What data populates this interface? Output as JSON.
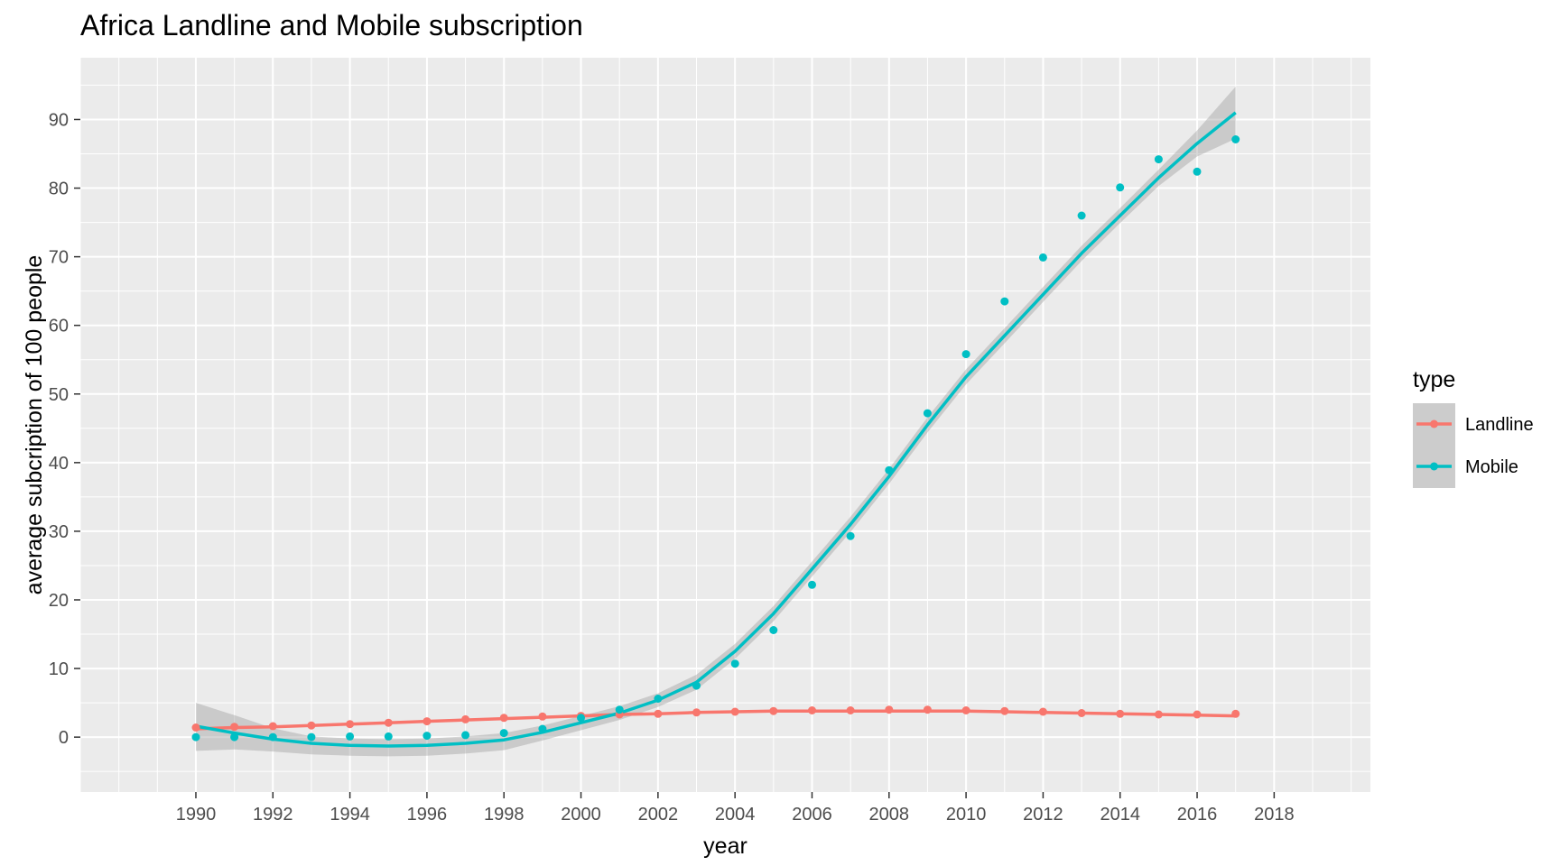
{
  "chart_data": {
    "type": "line",
    "title": "Africa Landline and Mobile subscription",
    "xlabel": "year",
    "ylabel": "average subcription of 100 people",
    "xlim": [
      1987.0,
      2020.5
    ],
    "ylim": [
      -8.0,
      99.0
    ],
    "x_ticks": [
      "1990",
      "1992",
      "1994",
      "1996",
      "1998",
      "2000",
      "2002",
      "2004",
      "2006",
      "2008",
      "2010",
      "2012",
      "2014",
      "2016",
      "2018"
    ],
    "y_ticks": [
      "0",
      "10",
      "20",
      "30",
      "40",
      "50",
      "60",
      "70",
      "80",
      "90"
    ],
    "grid": true,
    "background": "#ebebeb",
    "legend": {
      "title": "type",
      "position": "right",
      "entries": [
        "Landline",
        "Mobile"
      ]
    },
    "x": [
      1990,
      1991,
      1992,
      1993,
      1994,
      1995,
      1996,
      1997,
      1998,
      1999,
      2000,
      2001,
      2002,
      2003,
      2004,
      2005,
      2006,
      2007,
      2008,
      2009,
      2010,
      2011,
      2012,
      2013,
      2014,
      2015,
      2016,
      2017
    ],
    "series": [
      {
        "name": "Landline",
        "color": "#f8766d",
        "points": [
          1.4,
          1.5,
          1.6,
          1.7,
          1.9,
          2.1,
          2.3,
          2.6,
          2.8,
          3.0,
          3.1,
          3.3,
          3.4,
          3.6,
          3.7,
          3.8,
          3.9,
          3.9,
          4.0,
          4.0,
          3.9,
          3.8,
          3.7,
          3.5,
          3.4,
          3.3,
          3.3,
          3.4
        ],
        "smooth": [
          1.2,
          1.4,
          1.5,
          1.7,
          1.9,
          2.1,
          2.3,
          2.5,
          2.7,
          2.9,
          3.1,
          3.3,
          3.4,
          3.6,
          3.7,
          3.8,
          3.8,
          3.8,
          3.8,
          3.8,
          3.8,
          3.7,
          3.6,
          3.5,
          3.4,
          3.3,
          3.2,
          3.1
        ]
      },
      {
        "name": "Mobile",
        "color": "#00bfc4",
        "points": [
          0.0,
          0.0,
          0.0,
          0.0,
          0.1,
          0.1,
          0.2,
          0.3,
          0.6,
          1.2,
          2.8,
          4.0,
          5.6,
          7.5,
          10.7,
          15.6,
          22.2,
          29.3,
          38.9,
          47.2,
          55.8,
          63.5,
          69.9,
          76.0,
          80.1,
          84.2,
          82.4,
          87.1
        ],
        "smooth": [
          1.6,
          0.6,
          -0.3,
          -0.9,
          -1.2,
          -1.3,
          -1.2,
          -0.9,
          -0.4,
          0.7,
          2.1,
          3.5,
          5.4,
          8.0,
          12.5,
          18.0,
          24.5,
          31.0,
          38.0,
          45.5,
          52.5,
          58.5,
          64.5,
          70.5,
          76.0,
          81.5,
          86.5,
          91.0
        ],
        "ci_upper": [
          5.0,
          3.2,
          1.3,
          0.1,
          -0.2,
          -0.3,
          -0.2,
          0.1,
          0.6,
          1.7,
          3.1,
          4.5,
          6.4,
          9.1,
          13.6,
          19.1,
          25.6,
          32.1,
          39.1,
          46.6,
          53.6,
          59.6,
          65.6,
          71.6,
          77.1,
          82.7,
          88.4,
          94.8
        ],
        "ci_lower": [
          -2.0,
          -1.8,
          -2.1,
          -2.5,
          -2.7,
          -2.8,
          -2.7,
          -2.4,
          -1.9,
          -0.5,
          1.0,
          2.5,
          4.4,
          6.9,
          11.4,
          16.9,
          23.4,
          29.9,
          36.9,
          44.4,
          51.4,
          57.4,
          63.4,
          69.4,
          74.9,
          80.3,
          84.6,
          87.2
        ]
      }
    ]
  }
}
